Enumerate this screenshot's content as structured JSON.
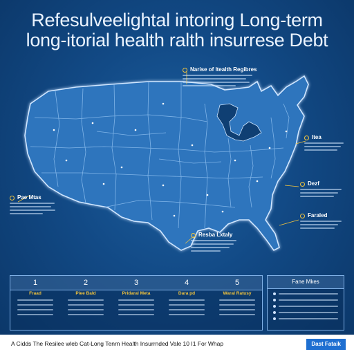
{
  "title": {
    "line1": "Refesulveelightal intoring Long-term",
    "line2": "long-itorial health ralth insurresе Debt"
  },
  "callouts": {
    "top": {
      "title": "Narise of Itealth Regibres"
    },
    "ne": {
      "title": "Itea"
    },
    "east": {
      "title": "Dezf"
    },
    "se": {
      "title": "Faraled"
    },
    "west": {
      "title": "Pae Mtas"
    },
    "south": {
      "title": "Resba Lxtaly"
    }
  },
  "bottom": {
    "columns": [
      {
        "num": "1",
        "label": "Fraad"
      },
      {
        "num": "2",
        "label": "Piee Bald"
      },
      {
        "num": "3",
        "label": "Pridaral Meta"
      },
      {
        "num": "4",
        "label": "Dara pd"
      },
      {
        "num": "5",
        "label": "Waral Ratusy"
      }
    ],
    "side_title": "Fane Mkes"
  },
  "footer": {
    "caption": "A Cidds The Resilee wleb Cat-Long Tenrn Health Insurrnded Vale 10 I1 For Whap",
    "badge": "Dast Fataik"
  },
  "colors": {
    "background": "#0f3f73",
    "land": "#2e74bd",
    "state_border": "#8fc0f0",
    "accent": "#f4c53d",
    "badge": "#1e6fd1"
  }
}
